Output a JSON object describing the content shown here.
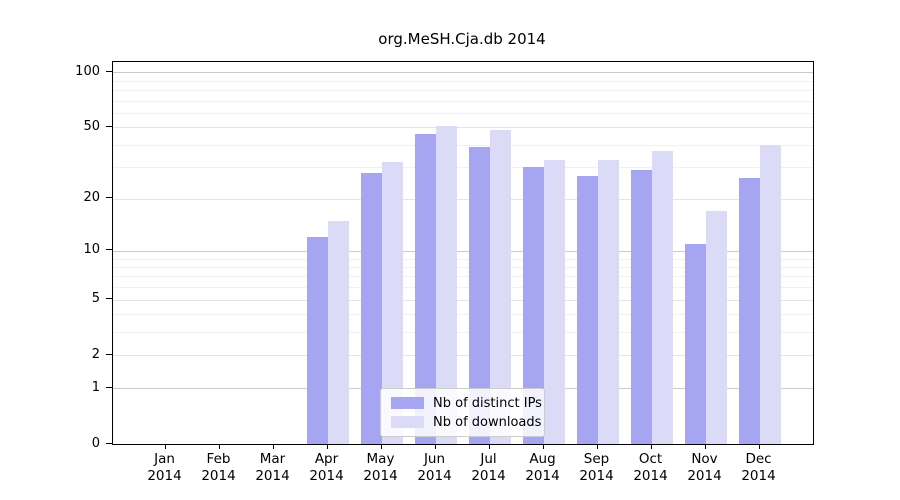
{
  "title": "org.MeSH.Cja.db 2014",
  "chart_data": {
    "type": "bar",
    "title": "org.MeSH.Cja.db 2014",
    "categories": [
      "Jan",
      "Feb",
      "Mar",
      "Apr",
      "May",
      "Jun",
      "Jul",
      "Aug",
      "Sep",
      "Oct",
      "Nov",
      "Dec"
    ],
    "year": "2014",
    "series": [
      {
        "name": "Nb of distinct IPs",
        "color": "#a5a5f2",
        "values": [
          0,
          0,
          0,
          12,
          28,
          46,
          39,
          30,
          27,
          29,
          11,
          26
        ]
      },
      {
        "name": "Nb of downloads",
        "color": "#dbdbf7",
        "values": [
          0,
          0,
          0,
          15,
          32,
          51,
          48,
          33,
          33,
          37,
          17,
          40
        ]
      }
    ],
    "xlabel": "",
    "ylabel": "",
    "y_scale": "log1p",
    "y_ticks": [
      0,
      1,
      2,
      5,
      10,
      20,
      50,
      100
    ],
    "y_decade_gridlines": [
      1,
      10,
      100
    ],
    "y_mid_gridlines": [
      2,
      5,
      20,
      50
    ],
    "y_minor_gridlines": [
      3,
      4,
      6,
      7,
      8,
      9,
      30,
      40,
      60,
      70,
      80,
      90
    ],
    "ylim": [
      0,
      114
    ],
    "grid": true,
    "legend_position": "lower center"
  },
  "colors": {
    "bar_ips": "#a5a5f2",
    "bar_downloads": "#dbdbf7",
    "grid_decade": "#c9c9c9",
    "grid_mid": "#e5e5e5",
    "grid_minor": "#f1f1f1",
    "frame": "#000000"
  }
}
